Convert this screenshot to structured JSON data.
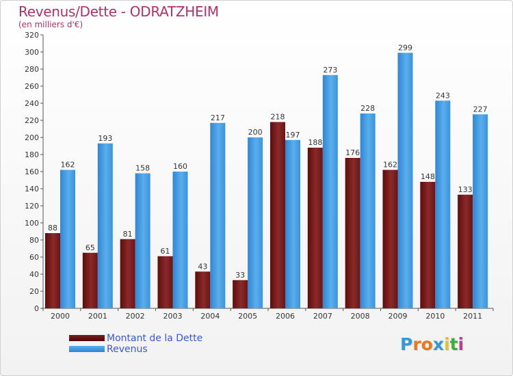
{
  "title": "Revenus/Dette - ODRATZHEIM",
  "subtitle": "(en milliers d'€)",
  "legend": {
    "dette": "Montant de la Dette",
    "revenus": "Revenus"
  },
  "logo": {
    "letters": [
      "P",
      "r",
      "o",
      "x",
      "i",
      "t",
      "i"
    ],
    "colors": [
      "#2f9bd8",
      "#e87a1e",
      "#e87a1e",
      "#2f9bd8",
      "#e8c21e",
      "#3cae3c",
      "#c23a8a"
    ]
  },
  "colors": {
    "dette": "#7a1e1e",
    "revenus": "#3c97e0",
    "title": "#b0306a",
    "legend_text": "#3a58d6"
  },
  "chart_data": {
    "type": "bar",
    "categories": [
      "2000",
      "2001",
      "2002",
      "2003",
      "2004",
      "2005",
      "2006",
      "2007",
      "2008",
      "2009",
      "2010",
      "2011"
    ],
    "series": [
      {
        "name": "Montant de la Dette",
        "values": [
          88,
          65,
          81,
          61,
          43,
          33,
          218,
          188,
          176,
          162,
          148,
          133
        ]
      },
      {
        "name": "Revenus",
        "values": [
          162,
          193,
          158,
          160,
          217,
          200,
          197,
          273,
          228,
          299,
          243,
          227
        ]
      }
    ],
    "title": "Revenus/Dette - ODRATZHEIM",
    "subtitle": "(en milliers d'€)",
    "xlabel": "",
    "ylabel": "",
    "ylim": [
      0,
      320
    ],
    "yticks": [
      0,
      20,
      40,
      60,
      80,
      100,
      120,
      140,
      160,
      180,
      200,
      220,
      240,
      260,
      280,
      300,
      320
    ],
    "grid": false,
    "legend_position": "bottom-left"
  }
}
